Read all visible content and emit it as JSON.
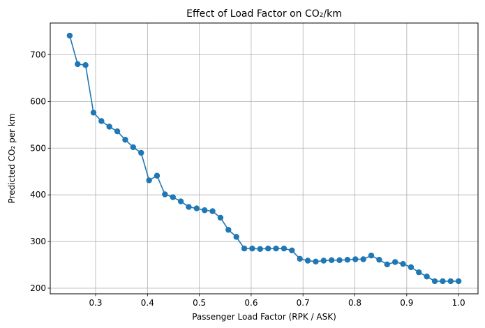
{
  "chart_data": {
    "type": "line",
    "title": "Effect of Load Factor on CO₂/km",
    "xlabel": "Passenger Load Factor (RPK / ASK)",
    "ylabel": "Predicted CO₂ per km",
    "xlim": [
      0.2125,
      1.0375
    ],
    "ylim": [
      188,
      768
    ],
    "xticks": [
      0.3,
      0.4,
      0.5,
      0.6,
      0.7,
      0.8,
      0.9,
      1.0
    ],
    "xtick_labels": [
      "0.3",
      "0.4",
      "0.5",
      "0.6",
      "0.7",
      "0.8",
      "0.9",
      "1.0"
    ],
    "yticks": [
      200,
      300,
      400,
      500,
      600,
      700
    ],
    "ytick_labels": [
      "200",
      "300",
      "400",
      "500",
      "600",
      "700"
    ],
    "grid": true,
    "legend": "none",
    "series": [
      {
        "color": "#1f77b4",
        "marker": "circle",
        "x": [
          0.25,
          0.2653,
          0.2806,
          0.2959,
          0.3112,
          0.3265,
          0.3418,
          0.3571,
          0.3724,
          0.3878,
          0.4031,
          0.4184,
          0.4337,
          0.449,
          0.4643,
          0.4796,
          0.4949,
          0.5102,
          0.5255,
          0.5408,
          0.5561,
          0.5714,
          0.5867,
          0.602,
          0.6173,
          0.6327,
          0.648,
          0.6633,
          0.6786,
          0.6939,
          0.7092,
          0.7245,
          0.7398,
          0.7551,
          0.7704,
          0.7857,
          0.801,
          0.8163,
          0.8316,
          0.8469,
          0.8622,
          0.8776,
          0.8929,
          0.9082,
          0.9235,
          0.9388,
          0.9541,
          0.9694,
          0.9847,
          1.0
        ],
        "y": [
          741,
          680,
          678,
          576,
          558,
          546,
          536,
          518,
          502,
          490,
          431,
          441,
          401,
          395,
          386,
          374,
          371,
          367,
          365,
          351,
          325,
          310,
          285,
          285,
          284,
          285,
          285,
          285,
          281,
          263,
          259,
          257,
          259,
          260,
          260,
          261,
          262,
          262,
          270,
          261,
          251,
          256,
          252,
          245,
          234,
          225,
          215,
          215,
          215,
          215
        ]
      }
    ]
  }
}
